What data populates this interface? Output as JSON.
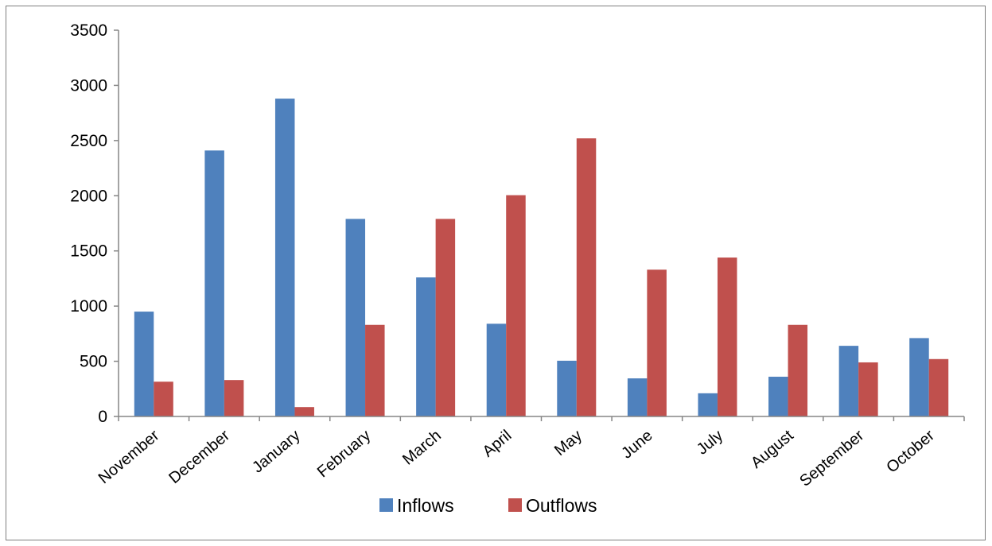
{
  "chart_data": {
    "type": "bar",
    "title": "",
    "xlabel": "",
    "ylabel": "",
    "ylim": [
      0,
      3500
    ],
    "yticks": [
      0,
      500,
      1000,
      1500,
      2000,
      2500,
      3000,
      3500
    ],
    "grid": false,
    "legend_position": "bottom",
    "categories": [
      "November",
      "December",
      "January",
      "February",
      "March",
      "April",
      "May",
      "June",
      "July",
      "August",
      "September",
      "October"
    ],
    "series": [
      {
        "name": "Inflows",
        "color": "#4f81bd",
        "values": [
          950,
          2410,
          2880,
          1790,
          1260,
          840,
          505,
          345,
          210,
          360,
          640,
          710
        ]
      },
      {
        "name": "Outflows",
        "color": "#c0504d",
        "values": [
          315,
          330,
          85,
          830,
          1790,
          2005,
          2520,
          1330,
          1440,
          830,
          490,
          520
        ]
      }
    ]
  }
}
